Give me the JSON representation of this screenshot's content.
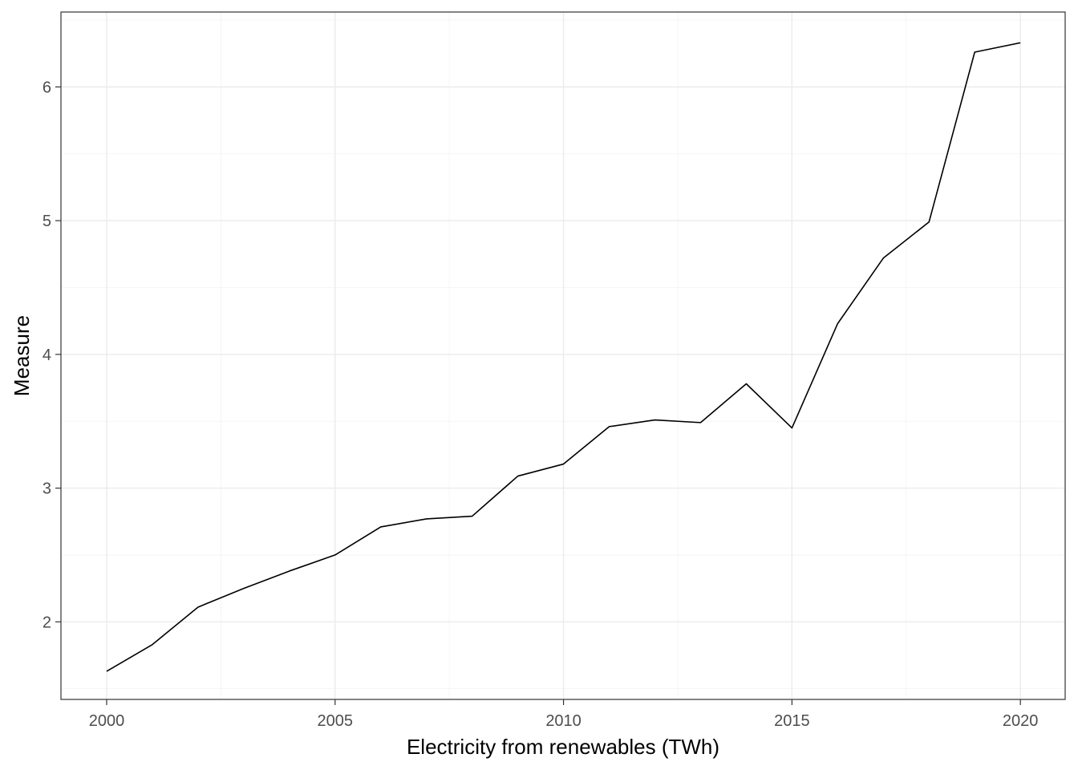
{
  "chart_data": {
    "type": "line",
    "title": "",
    "xlabel": "Electricity from renewables (TWh)",
    "ylabel": "Measure",
    "x": [
      2000,
      2001,
      2002,
      2003,
      2004,
      2005,
      2006,
      2007,
      2008,
      2009,
      2010,
      2011,
      2012,
      2013,
      2014,
      2015,
      2016,
      2017,
      2018,
      2019,
      2020
    ],
    "series": [
      {
        "values": [
          1.63,
          1.83,
          2.11,
          2.25,
          2.38,
          2.5,
          2.71,
          2.77,
          2.79,
          3.09,
          3.18,
          3.46,
          3.51,
          3.49,
          3.78,
          3.45,
          4.23,
          4.72,
          4.99,
          6.26,
          6.33
        ]
      }
    ],
    "xlim": [
      1999.0,
      2020.98
    ],
    "ylim": [
      1.42,
      6.56
    ],
    "x_ticks": [
      2000,
      2005,
      2010,
      2015,
      2020
    ],
    "x_tick_labels": [
      "2000",
      "2005",
      "2010",
      "2015",
      "2020"
    ],
    "y_ticks": [
      2,
      3,
      4,
      5,
      6
    ],
    "y_tick_labels": [
      "2",
      "3",
      "4",
      "5",
      "6"
    ],
    "grid": true,
    "line_color": "#000000"
  }
}
